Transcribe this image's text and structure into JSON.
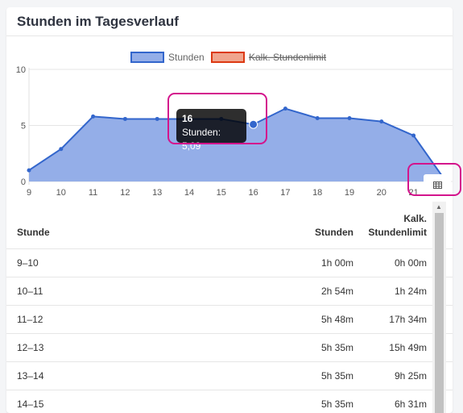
{
  "card": {
    "title": "Stunden im Tagesverlauf"
  },
  "legend": [
    {
      "label": "Stunden",
      "color": "#3366cc",
      "fill": "#94aee8",
      "hidden": false
    },
    {
      "label": "Kalk. Stundenlimit",
      "color": "#dc3912",
      "fill": "#f0a58e",
      "hidden": true
    }
  ],
  "chart_data": {
    "type": "area",
    "x": [
      9,
      10,
      11,
      12,
      13,
      14,
      15,
      16,
      17,
      18,
      19,
      20,
      21,
      22
    ],
    "series": [
      {
        "name": "Stunden",
        "values": [
          1.0,
          2.9,
          5.8,
          5.58,
          5.58,
          5.58,
          5.58,
          5.09,
          6.5,
          5.65,
          5.65,
          5.35,
          4.1,
          0.05
        ]
      }
    ],
    "x_tick_labels": [
      "9",
      "10",
      "11",
      "12",
      "13",
      "14",
      "15",
      "16",
      "17",
      "18",
      "19",
      "20",
      "21"
    ],
    "y_ticks": [
      0,
      5,
      10
    ],
    "ylim": [
      0,
      10
    ],
    "grid": true,
    "legend_position": "top"
  },
  "tooltip": {
    "title": "16",
    "body": "Stunden: 5,09"
  },
  "table": {
    "headers": {
      "col1": "Stunde",
      "col2": "Stunden",
      "col3_line1": "Kalk.",
      "col3_line2": "Stundenlimit"
    },
    "rows": [
      {
        "hour": "9–10",
        "stunden": "1h 00m",
        "limit": "0h 00m"
      },
      {
        "hour": "10–11",
        "stunden": "2h 54m",
        "limit": "1h 24m"
      },
      {
        "hour": "11–12",
        "stunden": "5h 48m",
        "limit": "17h 34m"
      },
      {
        "hour": "12–13",
        "stunden": "5h 35m",
        "limit": "15h 49m"
      },
      {
        "hour": "13–14",
        "stunden": "5h 35m",
        "limit": "9h 25m"
      },
      {
        "hour": "14–15",
        "stunden": "5h 35m",
        "limit": "6h 31m"
      }
    ]
  },
  "colors": {
    "highlight": "#d4148c",
    "series_line": "#3366cc",
    "series_fill": "#94aee8"
  },
  "icons": {
    "table_toggle": "table-icon",
    "scroll_up": "arrow-up-icon"
  }
}
